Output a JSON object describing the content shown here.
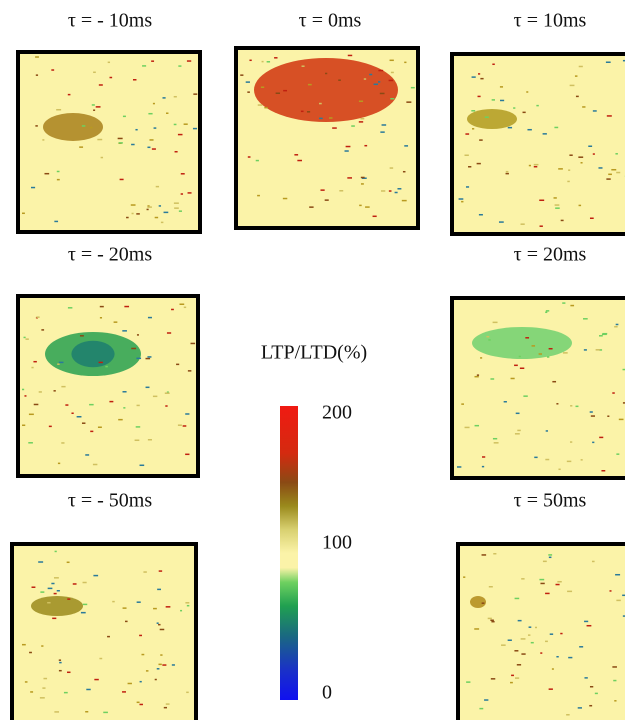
{
  "panels": [
    {
      "label": "τ = - 10ms"
    },
    {
      "label": "τ = 0ms"
    },
    {
      "label": "τ = 10ms"
    },
    {
      "label": "τ = - 20ms"
    },
    {
      "label": "τ = 20ms"
    },
    {
      "label": "τ = - 50ms"
    },
    {
      "label": "τ = 50ms"
    }
  ],
  "colorbar": {
    "title": "LTP/LTD(%)",
    "ticks": [
      200,
      100,
      0
    ]
  }
}
